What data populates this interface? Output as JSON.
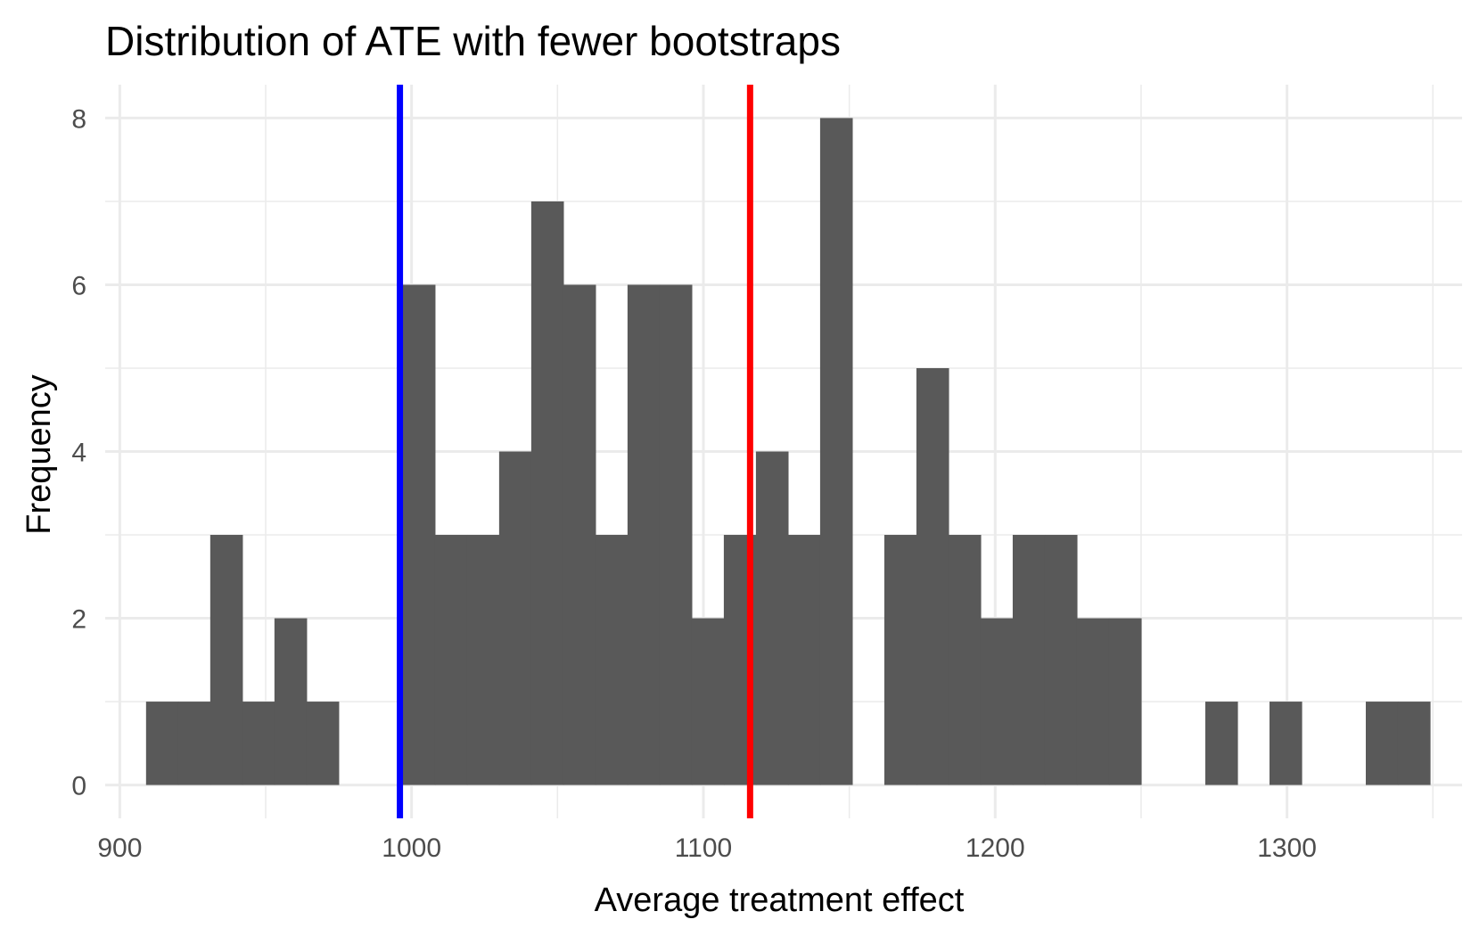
{
  "chart_data": {
    "type": "bar",
    "title": "Distribution of ATE with fewer bootstraps",
    "xlabel": "Average treatment effect",
    "ylabel": "Frequency",
    "xlim": [
      895,
      1360
    ],
    "ylim": [
      -0.4,
      8.4
    ],
    "x_ticks": [
      900,
      1000,
      1100,
      1200,
      1300
    ],
    "y_ticks": [
      0,
      2,
      4,
      6,
      8
    ],
    "bar_color": "#595959",
    "grid": true,
    "bins": [
      {
        "start": 909,
        "end": 920,
        "count": 1
      },
      {
        "start": 920,
        "end": 931,
        "count": 1
      },
      {
        "start": 931,
        "end": 942,
        "count": 3
      },
      {
        "start": 942,
        "end": 953,
        "count": 1
      },
      {
        "start": 953,
        "end": 964,
        "count": 2
      },
      {
        "start": 964,
        "end": 975,
        "count": 1
      },
      {
        "start": 975,
        "end": 986,
        "count": 0
      },
      {
        "start": 986,
        "end": 997,
        "count": 0
      },
      {
        "start": 997,
        "end": 1008,
        "count": 6
      },
      {
        "start": 1008,
        "end": 1019,
        "count": 3
      },
      {
        "start": 1019,
        "end": 1030,
        "count": 3
      },
      {
        "start": 1030,
        "end": 1041,
        "count": 4
      },
      {
        "start": 1041,
        "end": 1052,
        "count": 7
      },
      {
        "start": 1052,
        "end": 1063,
        "count": 6
      },
      {
        "start": 1063,
        "end": 1074,
        "count": 3
      },
      {
        "start": 1074,
        "end": 1085,
        "count": 6
      },
      {
        "start": 1085,
        "end": 1096,
        "count": 6
      },
      {
        "start": 1096,
        "end": 1107,
        "count": 2
      },
      {
        "start": 1107,
        "end": 1118,
        "count": 3
      },
      {
        "start": 1118,
        "end": 1129,
        "count": 4
      },
      {
        "start": 1129,
        "end": 1140,
        "count": 3
      },
      {
        "start": 1140,
        "end": 1151,
        "count": 8
      },
      {
        "start": 1151,
        "end": 1162,
        "count": 0
      },
      {
        "start": 1162,
        "end": 1173,
        "count": 3
      },
      {
        "start": 1173,
        "end": 1184,
        "count": 5
      },
      {
        "start": 1184,
        "end": 1195,
        "count": 3
      },
      {
        "start": 1195,
        "end": 1206,
        "count": 2
      },
      {
        "start": 1206,
        "end": 1217,
        "count": 3
      },
      {
        "start": 1217,
        "end": 1228,
        "count": 3
      },
      {
        "start": 1228,
        "end": 1239,
        "count": 2
      },
      {
        "start": 1239,
        "end": 1250,
        "count": 2
      },
      {
        "start": 1250,
        "end": 1261,
        "count": 0
      },
      {
        "start": 1261,
        "end": 1272,
        "count": 0
      },
      {
        "start": 1272,
        "end": 1283,
        "count": 1
      },
      {
        "start": 1283,
        "end": 1294,
        "count": 0
      },
      {
        "start": 1294,
        "end": 1305,
        "count": 1
      },
      {
        "start": 1305,
        "end": 1316,
        "count": 0
      },
      {
        "start": 1316,
        "end": 1327,
        "count": 0
      },
      {
        "start": 1327,
        "end": 1338,
        "count": 1
      },
      {
        "start": 1338,
        "end": 1349,
        "count": 1
      }
    ],
    "vlines": [
      {
        "x": 996,
        "color": "#0000ff"
      },
      {
        "x": 1116,
        "color": "#ff0000"
      }
    ]
  }
}
